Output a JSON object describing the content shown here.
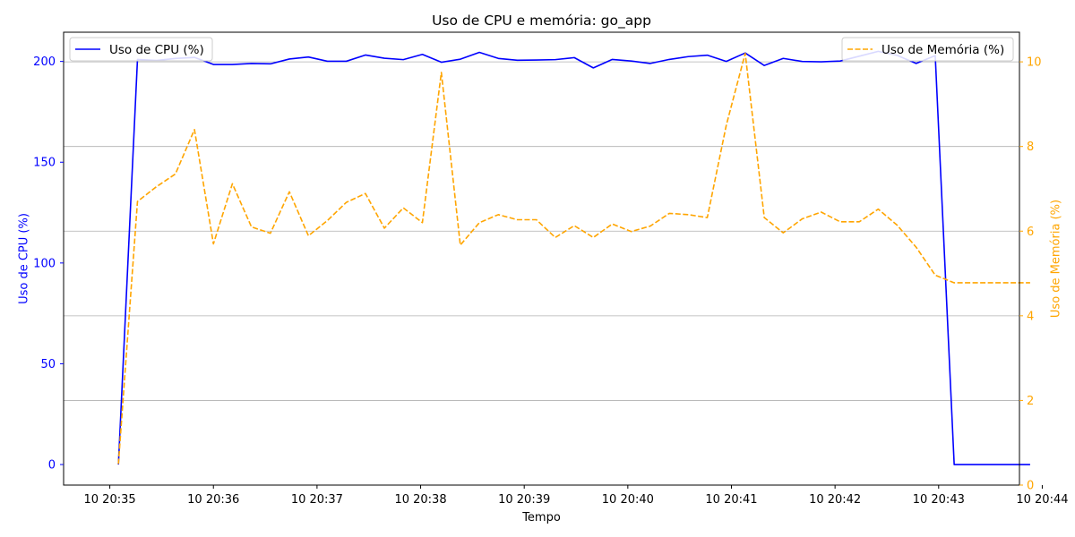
{
  "chart_data": {
    "type": "line",
    "title": "Uso de CPU e memória: go_app",
    "xlabel": "Tempo",
    "y_left_label": "Uso de CPU (%)",
    "y_right_label": "Uso de Memória (%)",
    "x_ticks": [
      "10 20:35",
      "10 20:36",
      "10 20:37",
      "10 20:38",
      "10 20:39",
      "10 20:40",
      "10 20:41",
      "10 20:42",
      "10 20:43",
      "10 20:44"
    ],
    "y_left_ticks": [
      "0",
      "50",
      "100",
      "150",
      "200"
    ],
    "y_right_ticks": [
      "0",
      "2",
      "4",
      "6",
      "8",
      "10"
    ],
    "x_range_minutes": [
      -0.446,
      8.78
    ],
    "y_left_range": [
      -10.2,
      214.5
    ],
    "y_right_range": [
      0,
      10.7
    ],
    "grid": "horizontal on right axis",
    "legend_left_placement": "top-left",
    "legend_right_placement": "top-right",
    "series": [
      {
        "name": "Uso de CPU (%)",
        "axis": "left",
        "color": "#0000ff",
        "style": "solid",
        "x_minutes": [
          0.083,
          0.267,
          0.45,
          0.633,
          0.817,
          1.0,
          1.183,
          1.367,
          1.55,
          1.733,
          1.917,
          2.1,
          2.283,
          2.467,
          2.65,
          2.833,
          3.017,
          3.2,
          3.383,
          3.567,
          3.75,
          3.933,
          4.117,
          4.3,
          4.483,
          4.667,
          4.85,
          5.033,
          5.217,
          5.4,
          5.583,
          5.767,
          5.95,
          6.133,
          6.317,
          6.5,
          6.683,
          6.867,
          7.05,
          7.233,
          7.417,
          7.6,
          7.783,
          7.967,
          8.15,
          8.333,
          8.517,
          8.7,
          8.883
        ],
        "values": [
          0,
          201,
          200.5,
          201.5,
          202,
          198.5,
          198.5,
          199,
          198.8,
          201.2,
          202.2,
          200.1,
          200.1,
          203.2,
          201.6,
          200.9,
          203.5,
          199.6,
          201.1,
          204.5,
          201.5,
          200.6,
          200.7,
          200.9,
          201.9,
          196.8,
          201,
          200.2,
          199,
          201,
          202.4,
          203.1,
          200,
          204.2,
          198,
          201.5,
          200,
          199.8,
          200.2,
          202.6,
          205,
          203,
          199,
          202.9,
          0,
          0,
          0,
          0,
          0
        ]
      },
      {
        "name": "Uso de Memória (%)",
        "axis": "right",
        "color": "#ffa500",
        "style": "dashed",
        "x_minutes": [
          0.083,
          0.267,
          0.45,
          0.633,
          0.817,
          1.0,
          1.183,
          1.367,
          1.55,
          1.733,
          1.917,
          2.1,
          2.283,
          2.467,
          2.65,
          2.833,
          3.017,
          3.2,
          3.383,
          3.567,
          3.75,
          3.933,
          4.117,
          4.3,
          4.483,
          4.667,
          4.85,
          5.033,
          5.217,
          5.4,
          5.583,
          5.767,
          5.95,
          6.133,
          6.317,
          6.5,
          6.683,
          6.867,
          7.05,
          7.233,
          7.417,
          7.6,
          7.783,
          7.967,
          8.15,
          8.333,
          8.517,
          8.7,
          8.883
        ],
        "values": [
          0.5,
          6.7,
          7.05,
          7.35,
          8.4,
          5.7,
          7.12,
          6.1,
          5.95,
          6.93,
          5.89,
          6.25,
          6.68,
          6.89,
          6.07,
          6.55,
          6.2,
          9.75,
          5.67,
          6.2,
          6.39,
          6.27,
          6.27,
          5.85,
          6.13,
          5.85,
          6.17,
          5.99,
          6.12,
          6.42,
          6.39,
          6.32,
          8.5,
          10.2,
          6.32,
          5.96,
          6.29,
          6.45,
          6.22,
          6.22,
          6.52,
          6.14,
          5.62,
          4.96,
          4.78,
          4.78,
          4.78,
          4.78,
          4.78
        ]
      }
    ]
  }
}
